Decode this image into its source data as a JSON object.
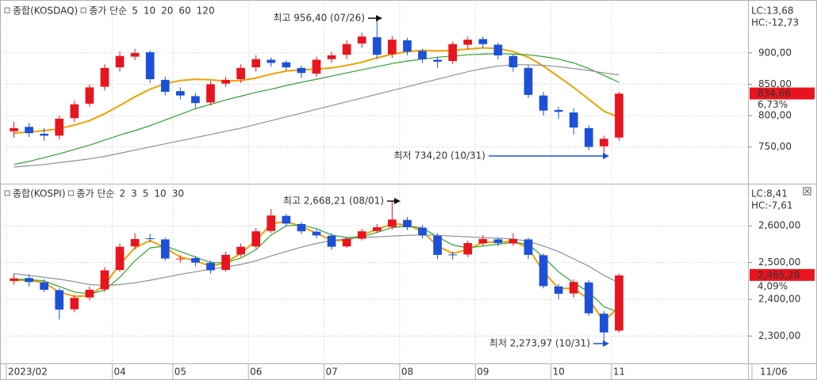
{
  "chart_data": [
    {
      "type": "candlestick",
      "title": "종합(KOSDAQ)",
      "ma_label": "종가 단순",
      "ma_legend": [
        {
          "period": 5,
          "color": "#e040d8"
        },
        {
          "period": 10,
          "color": "#2040e0"
        },
        {
          "period": 20,
          "color": "#f0a000"
        },
        {
          "period": 60,
          "color": "#30a030"
        },
        {
          "period": 120,
          "color": "#909090"
        }
      ],
      "up_color": "#e8141e",
      "down_color": "#1c50d8",
      "open": [
        775,
        782,
        771,
        768,
        796,
        819,
        846,
        877,
        894,
        901,
        857,
        839,
        831,
        821,
        851,
        858,
        877,
        889,
        885,
        876,
        867,
        890,
        897,
        915,
        925,
        898,
        920,
        903,
        889,
        887,
        913,
        922,
        913,
        895,
        876,
        832,
        809,
        805,
        780,
        751,
        765
      ],
      "high": [
        790,
        788,
        780,
        800,
        824,
        850,
        882,
        902,
        906,
        904,
        862,
        845,
        836,
        855,
        862,
        882,
        896,
        893,
        888,
        880,
        894,
        902,
        920,
        932,
        956.4,
        927,
        924,
        906,
        894,
        918,
        926,
        926,
        916,
        898,
        880,
        838,
        814,
        812,
        785,
        768,
        838
      ],
      "low": [
        765,
        766,
        760,
        762,
        790,
        814,
        840,
        870,
        888,
        852,
        832,
        826,
        812,
        816,
        846,
        852,
        870,
        878,
        872,
        860,
        862,
        884,
        890,
        908,
        890,
        892,
        896,
        884,
        876,
        882,
        906,
        908,
        890,
        870,
        828,
        800,
        795,
        770,
        745,
        734.2,
        760
      ],
      "close": [
        780,
        772,
        768,
        795,
        818,
        845,
        876,
        895,
        900,
        858,
        838,
        832,
        820,
        850,
        857,
        876,
        890,
        884,
        877,
        868,
        889,
        896,
        914,
        926,
        897,
        921,
        902,
        890,
        886,
        914,
        921,
        914,
        896,
        877,
        833,
        808,
        806,
        781,
        750,
        763,
        835
      ],
      "ma_series": [
        {
          "color": "#f0a000",
          "values": [
            772,
            774,
            776,
            779,
            785,
            792,
            803,
            816,
            830,
            842,
            851,
            856,
            858,
            857,
            855,
            856,
            860,
            866,
            871,
            873,
            874,
            876,
            880,
            885,
            892,
            898,
            902,
            904,
            903,
            904,
            906,
            908,
            907,
            902,
            893,
            879,
            862,
            845,
            826,
            807,
            797
          ]
        },
        {
          "color": "#30a030",
          "values": [
            722,
            727,
            733,
            739,
            746,
            753,
            761,
            769,
            776,
            784,
            793,
            802,
            811,
            818,
            825,
            831,
            837,
            842,
            848,
            853,
            858,
            863,
            868,
            873,
            878,
            883,
            887,
            890,
            893,
            895,
            897,
            898,
            899,
            898,
            897,
            894,
            890,
            884,
            875,
            864,
            853
          ]
        },
        {
          "color": "#909090",
          "values": [
            718,
            720,
            722,
            725,
            728,
            731,
            735,
            740,
            745,
            750,
            755,
            760,
            765,
            770,
            775,
            780,
            786,
            792,
            798,
            804,
            810,
            816,
            822,
            828,
            834,
            840,
            846,
            852,
            858,
            864,
            870,
            875,
            879,
            881,
            881,
            880,
            878,
            875,
            872,
            868,
            865
          ]
        }
      ],
      "ylim": [
        694,
        978
      ],
      "yticks": [
        {
          "value": 750,
          "label": "750,00"
        },
        {
          "value": 800,
          "label": "800,00"
        },
        {
          "value": 850,
          "label": "850,00"
        },
        {
          "value": 900,
          "label": "900,00"
        }
      ],
      "lc": "LC:13,68",
      "hc": "HC:-12,73",
      "last_price": {
        "value": 834.66,
        "label": "834,66"
      },
      "change": "6,73%",
      "max_annotation": "최고 956,40 (07/26)",
      "min_annotation": "최저 734,20 (10/31)"
    },
    {
      "type": "candlestick",
      "title": "종합(KOSPI)",
      "ma_label": "종가 단순",
      "ma_legend": [
        {
          "period": 2,
          "color": "#e040d8"
        },
        {
          "period": 3,
          "color": "#2040e0"
        },
        {
          "period": 5,
          "color": "#f0a000"
        },
        {
          "period": 10,
          "color": "#30a030"
        },
        {
          "period": 30,
          "color": "#909090"
        }
      ],
      "up_color": "#e8141e",
      "down_color": "#1c50d8",
      "open": [
        2450,
        2458,
        2446,
        2425,
        2373,
        2405,
        2427,
        2480,
        2544,
        2566,
        2563,
        2510,
        2512,
        2499,
        2480,
        2522,
        2544,
        2586,
        2627,
        2605,
        2584,
        2573,
        2544,
        2565,
        2586,
        2597,
        2616,
        2595,
        2573,
        2522,
        2522,
        2552,
        2563,
        2552,
        2563,
        2520,
        2435,
        2416,
        2446,
        2361,
        2315
      ],
      "high": [
        2470,
        2468,
        2455,
        2430,
        2412,
        2435,
        2488,
        2552,
        2580,
        2578,
        2568,
        2520,
        2518,
        2505,
        2530,
        2552,
        2594,
        2645,
        2632,
        2610,
        2590,
        2580,
        2570,
        2592,
        2605,
        2668.21,
        2624,
        2602,
        2580,
        2530,
        2560,
        2575,
        2568,
        2580,
        2568,
        2525,
        2442,
        2455,
        2452,
        2368,
        2470
      ],
      "low": [
        2440,
        2435,
        2420,
        2345,
        2365,
        2398,
        2420,
        2475,
        2535,
        2555,
        2505,
        2500,
        2490,
        2470,
        2475,
        2515,
        2538,
        2580,
        2598,
        2578,
        2565,
        2535,
        2540,
        2560,
        2580,
        2590,
        2588,
        2565,
        2510,
        2508,
        2515,
        2545,
        2545,
        2545,
        2510,
        2430,
        2400,
        2405,
        2355,
        2273.97,
        2310
      ],
      "close": [
        2457,
        2447,
        2426,
        2372,
        2404,
        2426,
        2479,
        2543,
        2564,
        2564,
        2511,
        2511,
        2500,
        2479,
        2521,
        2543,
        2585,
        2628,
        2606,
        2585,
        2574,
        2543,
        2564,
        2585,
        2596,
        2617,
        2596,
        2574,
        2521,
        2521,
        2553,
        2564,
        2553,
        2564,
        2521,
        2436,
        2415,
        2447,
        2362,
        2310,
        2465
      ],
      "ma_series": [
        {
          "color": "#f0a000",
          "values": [
            2452,
            2452,
            2445,
            2420,
            2408,
            2410,
            2440,
            2495,
            2540,
            2560,
            2540,
            2515,
            2505,
            2490,
            2500,
            2525,
            2560,
            2605,
            2612,
            2598,
            2580,
            2560,
            2560,
            2575,
            2590,
            2605,
            2603,
            2585,
            2545,
            2525,
            2535,
            2555,
            2556,
            2558,
            2540,
            2475,
            2430,
            2430,
            2400,
            2340,
            2380
          ]
        },
        {
          "color": "#30a030",
          "values": [
            2455,
            2454,
            2450,
            2435,
            2420,
            2415,
            2425,
            2460,
            2505,
            2540,
            2545,
            2530,
            2515,
            2500,
            2500,
            2512,
            2535,
            2575,
            2600,
            2602,
            2592,
            2575,
            2568,
            2570,
            2582,
            2595,
            2600,
            2594,
            2570,
            2548,
            2540,
            2545,
            2550,
            2555,
            2550,
            2515,
            2475,
            2445,
            2420,
            2380,
            2365
          ]
        },
        {
          "color": "#909090",
          "values": [
            2470,
            2465,
            2460,
            2455,
            2448,
            2440,
            2438,
            2440,
            2445,
            2452,
            2460,
            2468,
            2475,
            2482,
            2488,
            2495,
            2505,
            2518,
            2530,
            2542,
            2552,
            2560,
            2565,
            2568,
            2570,
            2572,
            2574,
            2575,
            2574,
            2572,
            2570,
            2568,
            2566,
            2564,
            2558,
            2545,
            2530,
            2510,
            2490,
            2465,
            2445
          ]
        }
      ],
      "ylim": [
        2228,
        2706
      ],
      "yticks": [
        {
          "value": 2300,
          "label": "2,300,00"
        },
        {
          "value": 2400,
          "label": "2,400,00"
        },
        {
          "value": 2500,
          "label": "2,500,00"
        },
        {
          "value": 2600,
          "label": "2,600,00"
        }
      ],
      "lc": "LC:8,41",
      "hc": "HC:-7,61",
      "last_price": {
        "value": 2465.28,
        "label": "2,465,28"
      },
      "change": "4,09%",
      "max_annotation": "최고 2,668,21 (08/01)",
      "min_annotation": "최저 2,273,97 (10/31)",
      "categories": [
        "2023/02",
        null,
        null,
        null,
        null,
        null,
        null,
        "04",
        null,
        null,
        null,
        "05",
        null,
        null,
        null,
        null,
        "06",
        null,
        null,
        null,
        null,
        "07",
        null,
        null,
        null,
        null,
        "08",
        null,
        null,
        null,
        null,
        "09",
        null,
        null,
        null,
        null,
        "10",
        null,
        null,
        null,
        "11"
      ],
      "last_date": "11/06"
    }
  ]
}
